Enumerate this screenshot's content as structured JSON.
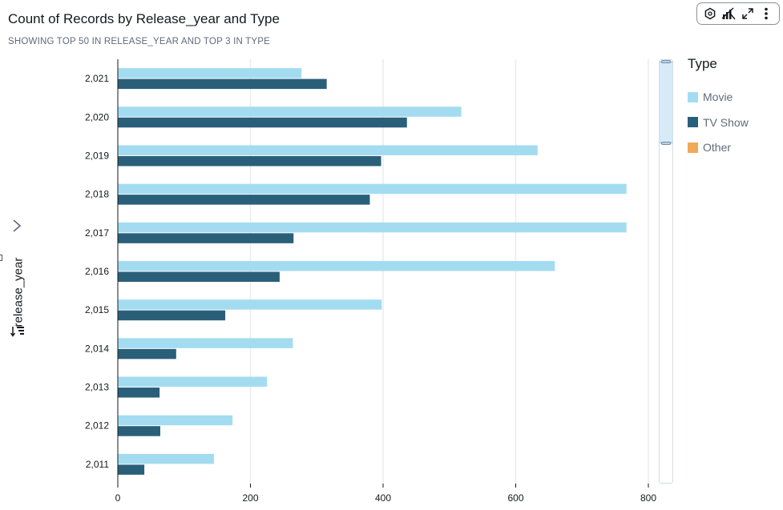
{
  "header": {
    "title": "Count of Records by Release_year and Type",
    "subtitle": "SHOWING TOP 50 IN RELEASE_YEAR AND TOP 3 IN TYPE"
  },
  "toolbar": {
    "icons": [
      "hexagon-icon",
      "insights-icon",
      "expand-icon",
      "more-icon"
    ]
  },
  "colors": {
    "movie": "#a3dcf1",
    "tv_show": "#2a5f79",
    "other": "#f0a957",
    "grid": "#e9ebed",
    "axis": "#16191f"
  },
  "legend": {
    "title": "Type",
    "items": [
      {
        "label": "Movie",
        "color": "#a3dcf1"
      },
      {
        "label": "TV Show",
        "color": "#2a5f79"
      },
      {
        "label": "Other",
        "color": "#f0a957"
      }
    ]
  },
  "chart_data": {
    "type": "bar",
    "orientation": "horizontal",
    "title": "Count of Records by Release_year and Type",
    "subtitle": "SHOWING TOP 50 IN RELEASE_YEAR AND TOP 3 IN TYPE",
    "ylabel": "release_year",
    "xlabel": "",
    "categories": [
      "2,021",
      "2,020",
      "2,019",
      "2,018",
      "2,017",
      "2,016",
      "2,015",
      "2,014",
      "2,013",
      "2,012",
      "2,011"
    ],
    "series": [
      {
        "name": "Movie",
        "values": [
          277,
          518,
          633,
          767,
          767,
          659,
          398,
          264,
          225,
          173,
          145
        ]
      },
      {
        "name": "TV Show",
        "values": [
          315,
          436,
          397,
          380,
          265,
          244,
          162,
          88,
          63,
          64,
          40
        ]
      }
    ],
    "xlim": [
      0,
      800
    ],
    "xticks": [
      0,
      200,
      400,
      600,
      800
    ],
    "grid": true,
    "legend_position": "right"
  }
}
